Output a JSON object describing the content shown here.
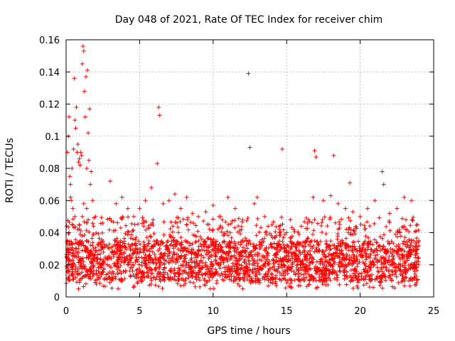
{
  "chart_data": {
    "type": "scatter",
    "title": "Day 048 of 2021, Rate Of TEC Index for receiver chim",
    "xlabel": "GPS time / hours",
    "ylabel": "ROTI / TECUs",
    "xlim": [
      0,
      25
    ],
    "ylim": [
      0,
      0.16
    ],
    "xticks": [
      0,
      5,
      10,
      15,
      20,
      25
    ],
    "xtick_labels": [
      "0",
      "5",
      "10",
      "15",
      "20",
      "25"
    ],
    "yticks": [
      0,
      0.02,
      0.04,
      0.06,
      0.08,
      0.1,
      0.12,
      0.14,
      0.16
    ],
    "ytick_labels": [
      "0",
      "0.02",
      "0.04",
      "0.06",
      "0.08",
      "0.1",
      "0.12",
      "0.14",
      "0.16"
    ],
    "grid": true,
    "marker": "+",
    "color": "#ff0000",
    "x_data_extent": [
      0,
      24
    ],
    "typical_band": [
      0.01,
      0.035
    ],
    "series": [
      {
        "x": [
          0.1,
          0.2,
          0.3,
          0.4,
          0.5,
          0.55,
          0.6,
          0.7,
          0.8,
          0.9,
          1.0,
          1.1,
          1.15,
          1.2,
          1.25,
          1.3,
          1.4,
          1.5,
          1.6,
          1.7,
          1.8,
          0.15,
          0.25,
          0.35,
          0.45,
          0.65,
          0.75,
          0.85,
          0.95,
          1.05,
          1.35,
          1.45,
          1.55,
          1.65,
          0.3,
          0.6,
          0.9,
          1.2,
          1.5,
          0.2,
          0.8,
          1.1,
          1.4,
          2.0,
          2.5,
          3.0,
          3.4,
          3.8,
          4.2,
          4.6,
          5.0,
          5.4,
          5.8,
          6.2,
          6.3,
          6.35,
          6.6,
          7.0,
          7.4,
          7.8,
          8.2,
          8.6,
          9.0,
          9.5,
          10.0,
          10.5,
          11.0,
          11.5,
          12.0,
          12.4,
          12.5,
          12.8,
          13.0,
          13.5,
          14.0,
          14.5,
          14.7,
          15.0,
          15.5,
          16.0,
          16.5,
          16.8,
          16.9,
          17.0,
          17.5,
          18.0,
          18.2,
          18.5,
          19.0,
          19.3,
          19.5,
          20.0,
          20.5,
          21.0,
          21.5,
          21.6,
          22.0,
          22.5,
          23.0,
          23.5,
          23.9
        ],
        "y": [
          0.09,
          0.112,
          0.07,
          0.08,
          0.092,
          0.136,
          0.11,
          0.118,
          0.095,
          0.086,
          0.09,
          0.145,
          0.156,
          0.153,
          0.128,
          0.112,
          0.08,
          0.102,
          0.117,
          0.078,
          0.06,
          0.1,
          0.075,
          0.06,
          0.055,
          0.105,
          0.09,
          0.084,
          0.082,
          0.088,
          0.137,
          0.141,
          0.085,
          0.07,
          0.062,
          0.05,
          0.045,
          0.058,
          0.048,
          0.04,
          0.042,
          0.05,
          0.055,
          0.05,
          0.046,
          0.072,
          0.058,
          0.062,
          0.055,
          0.05,
          0.055,
          0.06,
          0.068,
          0.083,
          0.118,
          0.113,
          0.058,
          0.06,
          0.064,
          0.055,
          0.062,
          0.052,
          0.05,
          0.053,
          0.057,
          0.05,
          0.062,
          0.055,
          0.048,
          0.139,
          0.093,
          0.058,
          0.062,
          0.05,
          0.045,
          0.042,
          0.092,
          0.04,
          0.042,
          0.044,
          0.048,
          0.062,
          0.091,
          0.087,
          0.06,
          0.063,
          0.088,
          0.058,
          0.055,
          0.071,
          0.053,
          0.05,
          0.055,
          0.06,
          0.078,
          0.07,
          0.052,
          0.055,
          0.062,
          0.06,
          0.045
        ]
      }
    ]
  }
}
